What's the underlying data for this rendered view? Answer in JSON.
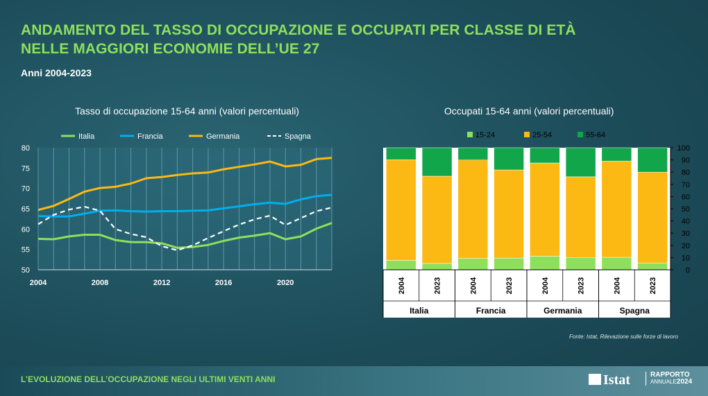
{
  "header": {
    "title_line1": "ANDAMENTO DEL TASSO DI OCCUPAZIONE E OCCUPATI PER CLASSE DI ETÀ",
    "title_line2": "NELLE MAGGIORI ECONOMIE DELL’UE 27",
    "subtitle": "Anni 2004-2023"
  },
  "colors": {
    "title_green": "#8ee05c",
    "italia": "#8ee05c",
    "francia": "#00aeef",
    "germania": "#fdb913",
    "spagna": "#ffffff",
    "age_15_24": "#8ee05c",
    "age_25_54": "#fdb913",
    "age_55_64": "#12a64b"
  },
  "chart_data": [
    {
      "type": "line",
      "title": "Tasso di occupazione 15-64 anni  (valori percentuali)",
      "x": [
        2004,
        2005,
        2006,
        2007,
        2008,
        2009,
        2010,
        2011,
        2012,
        2013,
        2014,
        2015,
        2016,
        2017,
        2018,
        2019,
        2020,
        2021,
        2022,
        2023
      ],
      "xticks": [
        "2004",
        "2008",
        "2012",
        "2016",
        "2020"
      ],
      "ylim": [
        50,
        80
      ],
      "yticks": [
        "50",
        "55",
        "60",
        "65",
        "70",
        "75",
        "80"
      ],
      "grid": "vertical",
      "legend": "top",
      "series": [
        {
          "name": "Italia",
          "style": "solid",
          "values": [
            57.6,
            57.5,
            58.2,
            58.6,
            58.6,
            57.3,
            56.8,
            56.8,
            56.5,
            55.4,
            55.6,
            56.1,
            57.1,
            57.9,
            58.4,
            59.0,
            57.5,
            58.2,
            60.1,
            61.5
          ]
        },
        {
          "name": "Francia",
          "style": "solid",
          "values": [
            63.2,
            63.1,
            63.1,
            63.8,
            64.5,
            64.6,
            64.4,
            64.3,
            64.4,
            64.4,
            64.5,
            64.6,
            65.1,
            65.6,
            66.1,
            66.5,
            66.2,
            67.3,
            68.1,
            68.4
          ]
        },
        {
          "name": "Germania",
          "style": "solid",
          "values": [
            64.7,
            65.7,
            67.4,
            69.2,
            70.1,
            70.4,
            71.2,
            72.5,
            72.8,
            73.3,
            73.7,
            73.9,
            74.7,
            75.3,
            75.9,
            76.6,
            75.4,
            75.8,
            77.2,
            77.5
          ]
        },
        {
          "name": "Spagna",
          "style": "dashed",
          "values": [
            61.2,
            63.5,
            64.8,
            65.5,
            64.5,
            60.0,
            58.8,
            58.0,
            55.8,
            54.8,
            56.0,
            57.8,
            59.5,
            61.1,
            62.4,
            63.3,
            61.0,
            62.7,
            64.4,
            65.3
          ]
        }
      ]
    },
    {
      "type": "bar",
      "stacked": true,
      "title": "Occupati 15-64 anni  (valori percentuali)",
      "groups": [
        "Italia",
        "Francia",
        "Germania",
        "Spagna"
      ],
      "categories": [
        "2004",
        "2023",
        "2004",
        "2023",
        "2004",
        "2023",
        "2004",
        "2023"
      ],
      "ylim": [
        0,
        100
      ],
      "yticks": [
        "0",
        "10",
        "20",
        "30",
        "40",
        "50",
        "60",
        "70",
        "80",
        "90",
        "100"
      ],
      "legend": "top",
      "series": [
        {
          "name": "15-24",
          "values": [
            7.7,
            5.2,
            9.3,
            9.6,
            11.1,
            10.1,
            10.2,
            5.6
          ]
        },
        {
          "name": "25-54",
          "values": [
            82.5,
            71.5,
            80.6,
            72.2,
            76.4,
            66.1,
            78.9,
            74.4
          ]
        },
        {
          "name": "55-64",
          "values": [
            9.8,
            23.3,
            10.1,
            18.2,
            12.5,
            23.8,
            10.9,
            20.0
          ]
        }
      ]
    }
  ],
  "source": "Fonte: Istat, Rilevazione sulle forze di lavoro",
  "footer": {
    "text": "L’EVOLUZIONE DELL’OCCUPAZIONE NEGLI ULTIMI VENTI ANNI",
    "logo": "Istat",
    "report_line1": "RAPPORTO",
    "report_line2a": "ANNUALE",
    "report_line2b": "2024"
  }
}
